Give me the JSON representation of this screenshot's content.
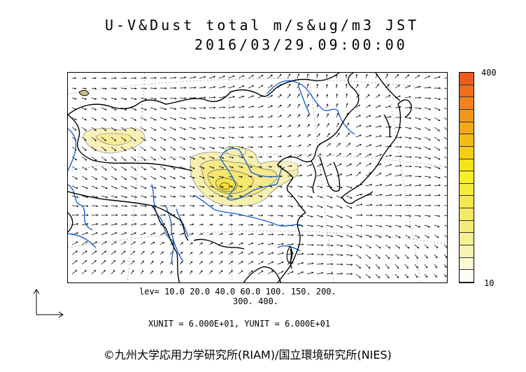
{
  "title": {
    "line1": "U-V&Dust total m/s&ug/m3 JST",
    "line2": "2016/03/29.09:00:00"
  },
  "colorbar": {
    "max_label": "400",
    "min_label": "10",
    "colors": [
      "#fdfdf5",
      "#fbf8d4",
      "#f9f3b0",
      "#f7ef94",
      "#f6ec7c",
      "#f5ea66",
      "#f4e84d",
      "#f5eb3a",
      "#f8ed2a",
      "#f8e11a",
      "#f7cd16",
      "#f5bb17",
      "#f3a819",
      "#f1961a",
      "#f0831c",
      "#ee6f1d",
      "#ea5b1e"
    ]
  },
  "levels": {
    "line1": "lev= 10.0 20.0 40.0 60.0 100. 150. 200.",
    "line2": "300. 400."
  },
  "units": {
    "text": "XUNIT = 6.000E+01, YUNIT = 6.000E+01"
  },
  "copyright": {
    "text": "©九州大学応用力学研究所(RIAM)/国立環境研究所(NIES)"
  }
}
